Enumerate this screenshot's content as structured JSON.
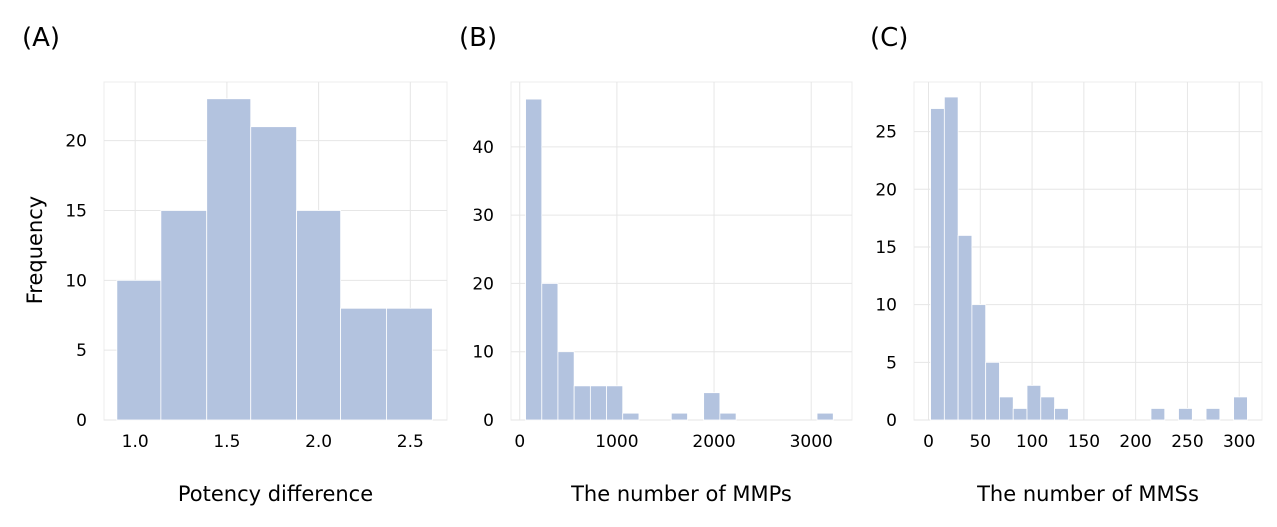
{
  "figure": {
    "ylabel": "Frequency"
  },
  "chart_data": [
    {
      "type": "bar",
      "label": "(A)",
      "title": "",
      "xlabel": "Potency difference",
      "ylabel": "Frequency",
      "xlim": [
        0.83,
        2.7
      ],
      "ylim": [
        0,
        24.2
      ],
      "xticks": [
        1.0,
        1.5,
        2.0,
        2.5
      ],
      "xtick_labels": [
        "1.0",
        "1.5",
        "2.0",
        "2.5"
      ],
      "yticks": [
        0,
        5,
        10,
        15,
        20
      ],
      "grid": true,
      "bins": [
        {
          "x0": 0.9,
          "x1": 1.14,
          "count": 10
        },
        {
          "x0": 1.14,
          "x1": 1.39,
          "count": 15
        },
        {
          "x0": 1.39,
          "x1": 1.63,
          "count": 23
        },
        {
          "x0": 1.63,
          "x1": 1.88,
          "count": 21
        },
        {
          "x0": 1.88,
          "x1": 2.12,
          "count": 15
        },
        {
          "x0": 2.12,
          "x1": 2.37,
          "count": 8
        },
        {
          "x0": 2.37,
          "x1": 2.62,
          "count": 8
        }
      ]
    },
    {
      "type": "bar",
      "label": "(B)",
      "title": "",
      "xlabel": "The number of MMPs",
      "ylabel": "",
      "xlim": [
        -90,
        3420
      ],
      "ylim": [
        0,
        49.5
      ],
      "xticks": [
        0,
        1000,
        2000,
        3000
      ],
      "xtick_labels": [
        "0",
        "1000",
        "2000",
        "3000"
      ],
      "yticks": [
        0,
        10,
        20,
        30,
        40
      ],
      "grid": true,
      "bins": [
        {
          "x0": 60,
          "x1": 227,
          "count": 47
        },
        {
          "x0": 227,
          "x1": 393,
          "count": 20
        },
        {
          "x0": 393,
          "x1": 560,
          "count": 10
        },
        {
          "x0": 560,
          "x1": 727,
          "count": 5
        },
        {
          "x0": 727,
          "x1": 893,
          "count": 5
        },
        {
          "x0": 893,
          "x1": 1060,
          "count": 5
        },
        {
          "x0": 1060,
          "x1": 1227,
          "count": 1
        },
        {
          "x0": 1227,
          "x1": 1393,
          "count": 0
        },
        {
          "x0": 1393,
          "x1": 1560,
          "count": 0
        },
        {
          "x0": 1560,
          "x1": 1727,
          "count": 1
        },
        {
          "x0": 1727,
          "x1": 1893,
          "count": 0
        },
        {
          "x0": 1893,
          "x1": 2060,
          "count": 4
        },
        {
          "x0": 2060,
          "x1": 2227,
          "count": 1
        },
        {
          "x0": 2227,
          "x1": 2393,
          "count": 0
        },
        {
          "x0": 2393,
          "x1": 2560,
          "count": 0
        },
        {
          "x0": 2560,
          "x1": 2727,
          "count": 0
        },
        {
          "x0": 2727,
          "x1": 2893,
          "count": 0
        },
        {
          "x0": 2893,
          "x1": 3060,
          "count": 0
        },
        {
          "x0": 3060,
          "x1": 3227,
          "count": 1
        }
      ]
    },
    {
      "type": "bar",
      "label": "(C)",
      "title": "",
      "xlabel": "The number of MMSs",
      "ylabel": "",
      "xlim": [
        -14,
        322
      ],
      "ylim": [
        0,
        29.3
      ],
      "xticks": [
        0,
        50,
        100,
        150,
        200,
        250,
        300
      ],
      "xtick_labels": [
        "0",
        "50",
        "100",
        "150",
        "200",
        "250",
        "300"
      ],
      "yticks": [
        0,
        5,
        10,
        15,
        20,
        25
      ],
      "grid": true,
      "bins": [
        {
          "x0": 2,
          "x1": 15.3,
          "count": 27
        },
        {
          "x0": 15.3,
          "x1": 28.6,
          "count": 28
        },
        {
          "x0": 28.6,
          "x1": 41.9,
          "count": 16
        },
        {
          "x0": 41.9,
          "x1": 55.2,
          "count": 10
        },
        {
          "x0": 55.2,
          "x1": 68.5,
          "count": 5
        },
        {
          "x0": 68.5,
          "x1": 81.8,
          "count": 2
        },
        {
          "x0": 81.8,
          "x1": 95.1,
          "count": 1
        },
        {
          "x0": 95.1,
          "x1": 108.4,
          "count": 3
        },
        {
          "x0": 108.4,
          "x1": 121.7,
          "count": 2
        },
        {
          "x0": 121.7,
          "x1": 135.0,
          "count": 1
        },
        {
          "x0": 135.0,
          "x1": 148.3,
          "count": 0
        },
        {
          "x0": 148.3,
          "x1": 161.6,
          "count": 0
        },
        {
          "x0": 161.6,
          "x1": 174.9,
          "count": 0
        },
        {
          "x0": 174.9,
          "x1": 188.2,
          "count": 0
        },
        {
          "x0": 188.2,
          "x1": 201.5,
          "count": 0
        },
        {
          "x0": 201.5,
          "x1": 214.8,
          "count": 0
        },
        {
          "x0": 214.8,
          "x1": 228.1,
          "count": 1
        },
        {
          "x0": 228.1,
          "x1": 241.4,
          "count": 0
        },
        {
          "x0": 241.4,
          "x1": 254.7,
          "count": 1
        },
        {
          "x0": 254.7,
          "x1": 268.0,
          "count": 0
        },
        {
          "x0": 268.0,
          "x1": 281.3,
          "count": 1
        },
        {
          "x0": 281.3,
          "x1": 294.6,
          "count": 0
        },
        {
          "x0": 294.6,
          "x1": 307.9,
          "count": 2
        }
      ]
    }
  ],
  "colors": {
    "bar_fill": "#b3c3df",
    "bar_edge": "#ffffff",
    "grid": "#e6e6e6",
    "frame": "#ececec",
    "text": "#000000"
  }
}
